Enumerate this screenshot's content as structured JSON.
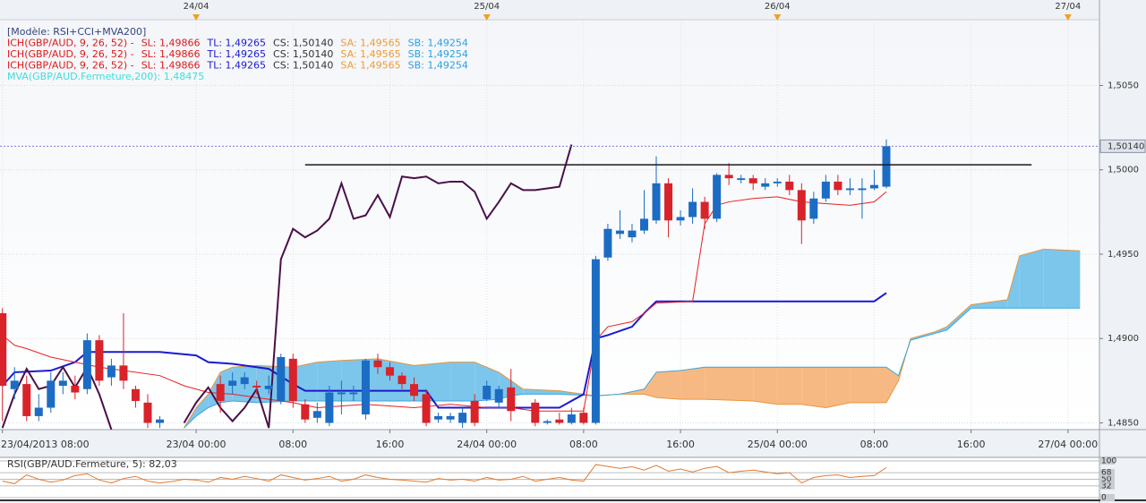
{
  "chart_data": {
    "type": "candlestick",
    "xlim": [
      -16.2,
      74.6
    ],
    "ylim": [
      1.4846,
      1.5089
    ],
    "grid": true,
    "yticks": [
      {
        "value": 1.485,
        "label": "1,4850"
      },
      {
        "value": 1.49,
        "label": "1,4900"
      },
      {
        "value": 1.495,
        "label": "1,4950"
      },
      {
        "value": 1.5,
        "label": "1,5000"
      },
      {
        "value": 1.505,
        "label": "1,5050"
      }
    ],
    "xticks": [
      {
        "value": -16,
        "label": "23/04/2013 08:00"
      },
      {
        "value": 0,
        "label": "23/04 00:00"
      },
      {
        "value": 8,
        "label": "08:00"
      },
      {
        "value": 16,
        "label": "16:00"
      },
      {
        "value": 24,
        "label": "24/04 00:00"
      },
      {
        "value": 32,
        "label": "08:00"
      },
      {
        "value": 40,
        "label": "16:00"
      },
      {
        "value": 48,
        "label": "25/04 00:00"
      },
      {
        "value": 56,
        "label": "08:00"
      },
      {
        "value": 64,
        "label": "16:00"
      },
      {
        "value": 72,
        "label": "27/04 00:00"
      }
    ],
    "top_ticks": [
      {
        "value": 0,
        "label": "24/04"
      },
      {
        "value": 24,
        "label": "25/04"
      },
      {
        "value": 48,
        "label": "26/04"
      },
      {
        "value": 72,
        "label": "27/04"
      }
    ],
    "legend_lines": [
      [
        {
          "text": "[Modèle: RSI+CCI+MVA200]",
          "color": "#34437e"
        }
      ],
      [
        {
          "text": "ICH(GBP/AUD, 9, 26, 52) -",
          "color": "#e01818"
        },
        {
          "text": "SL: 1,49866",
          "color": "#e01818"
        },
        {
          "text": "TL: 1,49265",
          "color": "#1a1ad0"
        },
        {
          "text": "CS: 1,50140",
          "color": "#333333"
        },
        {
          "text": "SA: 1,49565",
          "color": "#f09a30"
        },
        {
          "text": "SB: 1,49254",
          "color": "#2aa0e0"
        }
      ],
      [
        {
          "text": "ICH(GBP/AUD, 9, 26, 52) -",
          "color": "#e01818"
        },
        {
          "text": "SL: 1,49866",
          "color": "#e01818"
        },
        {
          "text": "TL: 1,49265",
          "color": "#1a1ad0"
        },
        {
          "text": "CS: 1,50140",
          "color": "#333333"
        },
        {
          "text": "SA: 1,49565",
          "color": "#f09a30"
        },
        {
          "text": "SB: 1,49254",
          "color": "#2aa0e0"
        }
      ],
      [
        {
          "text": "ICH(GBP/AUD, 9, 26, 52) -",
          "color": "#e01818"
        },
        {
          "text": "SL: 1,49866",
          "color": "#e01818"
        },
        {
          "text": "TL: 1,49265",
          "color": "#1a1ad0"
        },
        {
          "text": "CS: 1,50140",
          "color": "#333333"
        },
        {
          "text": "SA: 1,49565",
          "color": "#f09a30"
        },
        {
          "text": "SB: 1,49254",
          "color": "#2aa0e0"
        }
      ],
      [
        {
          "text": "MVA(GBP/AUD.Fermeture,200): 1,48475",
          "color": "#3fdcdc"
        }
      ]
    ],
    "cloud": {
      "x": [
        -1,
        0,
        1,
        2,
        3,
        5,
        8,
        10,
        12,
        15,
        18,
        21,
        23,
        25,
        26,
        27,
        30,
        33,
        35,
        37,
        38,
        40,
        42,
        46,
        48,
        50,
        52,
        54,
        56,
        57,
        58,
        59,
        61,
        62,
        64,
        67,
        68,
        70,
        73
      ],
      "sa": [
        1.4847,
        1.4859,
        1.4867,
        1.488,
        1.4883,
        1.4884,
        1.4883,
        1.4886,
        1.4887,
        1.4888,
        1.4884,
        1.4886,
        1.4886,
        1.488,
        1.4875,
        1.487,
        1.4869,
        1.4866,
        1.4867,
        1.4867,
        1.4865,
        1.4864,
        1.4864,
        1.4863,
        1.4861,
        1.4861,
        1.4859,
        1.4862,
        1.4862,
        1.4862,
        1.4875,
        1.49,
        1.4904,
        1.4907,
        1.492,
        1.4923,
        1.4949,
        1.4953,
        1.4952
      ],
      "sb": [
        1.4847,
        1.4854,
        1.4859,
        1.4862,
        1.4863,
        1.4862,
        1.4863,
        1.4863,
        1.4863,
        1.4863,
        1.4863,
        1.4863,
        1.4863,
        1.4864,
        1.4866,
        1.4867,
        1.4867,
        1.4866,
        1.4867,
        1.487,
        1.488,
        1.4881,
        1.4883,
        1.4883,
        1.4883,
        1.4883,
        1.4883,
        1.4883,
        1.4883,
        1.4883,
        1.4878,
        1.4899,
        1.4903,
        1.4905,
        1.4918,
        1.4918,
        1.4918,
        1.4918,
        1.4918
      ],
      "sa_color": "#e8953a",
      "sb_color": "#3aa8dc",
      "up_fill": "#7cc6ec",
      "down_fill": "#f7b983"
    },
    "candles": {
      "x": [
        -16,
        -15,
        -14,
        -13,
        -12,
        -11,
        -10,
        -9,
        -8,
        -7,
        -6,
        -5,
        -4,
        -3,
        2,
        3,
        4,
        5,
        6,
        7,
        8,
        9,
        10,
        11,
        12,
        13,
        14,
        15,
        16,
        17,
        18,
        19,
        20,
        21,
        22,
        23,
        24,
        25,
        26,
        28,
        29,
        30,
        31,
        32,
        33,
        34,
        35,
        36,
        37,
        38,
        39,
        40,
        41,
        42,
        43,
        44,
        45,
        46,
        47,
        48,
        49,
        50,
        51,
        52,
        53,
        54,
        55,
        56,
        57
      ],
      "open": [
        1.4915,
        1.487,
        1.4873,
        1.4854,
        1.4859,
        1.4872,
        1.4872,
        1.487,
        1.4899,
        1.4877,
        1.4884,
        1.487,
        1.4862,
        1.485,
        1.4873,
        1.4872,
        1.4873,
        1.4872,
        1.487,
        1.4863,
        1.4888,
        1.4861,
        1.4853,
        1.485,
        1.4867,
        1.4867,
        1.4855,
        1.4887,
        1.4883,
        1.4878,
        1.4873,
        1.4867,
        1.4852,
        1.4852,
        1.485,
        1.4863,
        1.4864,
        1.4862,
        1.4871,
        1.4862,
        1.485,
        1.4852,
        1.485,
        1.4856,
        1.485,
        1.4948,
        1.4962,
        1.496,
        1.4964,
        1.497,
        1.4992,
        1.497,
        1.4972,
        1.4981,
        1.4971,
        1.4997,
        1.4994,
        1.4995,
        1.499,
        1.4992,
        1.4993,
        1.4988,
        1.4971,
        1.4983,
        1.4993,
        1.4988,
        1.4988,
        1.4989,
        1.499
      ],
      "high": [
        1.4918,
        1.4883,
        1.4878,
        1.4867,
        1.488,
        1.488,
        1.4878,
        1.4903,
        1.4902,
        1.4888,
        1.4915,
        1.4872,
        1.4867,
        1.4854,
        1.4878,
        1.488,
        1.488,
        1.4875,
        1.4878,
        1.4891,
        1.4891,
        1.4864,
        1.4862,
        1.4872,
        1.4875,
        1.4872,
        1.4888,
        1.4891,
        1.4886,
        1.488,
        1.4877,
        1.487,
        1.4856,
        1.4856,
        1.4859,
        1.4867,
        1.4875,
        1.4872,
        1.4882,
        1.4864,
        1.4852,
        1.4856,
        1.4859,
        1.4859,
        1.4949,
        1.4968,
        1.4976,
        1.4968,
        1.4988,
        1.5008,
        1.4995,
        1.4976,
        1.4989,
        1.4984,
        1.4998,
        1.5004,
        1.4997,
        1.4997,
        1.4995,
        1.4995,
        1.4997,
        1.4992,
        1.4987,
        1.4997,
        1.4997,
        1.4995,
        1.4995,
        1.5,
        1.5018
      ],
      "low": [
        1.4851,
        1.4864,
        1.4851,
        1.4851,
        1.4856,
        1.4867,
        1.4864,
        1.4867,
        1.4872,
        1.4872,
        1.487,
        1.4859,
        1.4847,
        1.4847,
        1.4856,
        1.4867,
        1.487,
        1.4867,
        1.4867,
        1.4861,
        1.4859,
        1.485,
        1.485,
        1.4848,
        1.4855,
        1.4863,
        1.4852,
        1.4879,
        1.4875,
        1.487,
        1.4863,
        1.4848,
        1.485,
        1.485,
        1.4847,
        1.4848,
        1.4863,
        1.4859,
        1.4851,
        1.4848,
        1.4849,
        1.4849,
        1.4849,
        1.4849,
        1.4849,
        1.4946,
        1.4959,
        1.4957,
        1.4962,
        1.4968,
        1.496,
        1.4967,
        1.4968,
        1.4965,
        1.4969,
        1.4991,
        1.4992,
        1.4988,
        1.4988,
        1.499,
        1.4985,
        1.4956,
        1.4968,
        1.4981,
        1.4985,
        1.4985,
        1.4971,
        1.4988,
        1.4989
      ],
      "close": [
        1.4872,
        1.4875,
        1.4854,
        1.4859,
        1.4875,
        1.4875,
        1.4868,
        1.4899,
        1.4875,
        1.4884,
        1.4875,
        1.4863,
        1.485,
        1.4852,
        1.4863,
        1.4875,
        1.4877,
        1.4871,
        1.4872,
        1.4889,
        1.4863,
        1.4852,
        1.4857,
        1.4868,
        1.4868,
        1.4868,
        1.4887,
        1.4883,
        1.4878,
        1.4873,
        1.4866,
        1.485,
        1.4854,
        1.4854,
        1.4856,
        1.485,
        1.4872,
        1.487,
        1.4857,
        1.485,
        1.4851,
        1.485,
        1.4855,
        1.485,
        1.4947,
        1.4965,
        1.4964,
        1.4964,
        1.4971,
        1.4992,
        1.497,
        1.4972,
        1.4981,
        1.4971,
        1.4997,
        1.4995,
        1.4995,
        1.4992,
        1.4992,
        1.4993,
        1.4988,
        1.497,
        1.4983,
        1.4993,
        1.4988,
        1.4989,
        1.4989,
        1.4991,
        1.5014
      ],
      "up_color": "#1c6cc4",
      "down_color": "#d8232a"
    },
    "lines": [
      {
        "color": "#1a1ad0",
        "width": 2,
        "x": [
          -16,
          -15,
          -12,
          -10,
          -9,
          -3,
          0,
          1,
          3,
          6,
          8,
          9,
          19,
          20,
          30,
          32,
          33,
          34,
          36,
          37,
          38,
          56,
          57
        ],
        "values": [
          1.4872,
          1.488,
          1.4881,
          1.4886,
          1.4892,
          1.4892,
          1.489,
          1.4886,
          1.4885,
          1.4882,
          1.4873,
          1.4869,
          1.4869,
          1.4859,
          1.4859,
          1.4867,
          1.49,
          1.4902,
          1.4907,
          1.4915,
          1.4922,
          1.4922,
          1.4927
        ]
      },
      {
        "color": "#e82020",
        "width": 1,
        "x": [
          -16,
          -15,
          -14,
          -12,
          -10,
          -8,
          -6,
          -3,
          -1,
          1,
          3,
          6,
          8,
          10,
          14,
          18,
          21,
          24,
          26,
          28,
          32,
          33,
          34,
          36,
          37,
          38,
          41,
          42,
          43,
          44,
          46,
          48,
          50,
          52,
          54,
          56,
          57
        ],
        "values": [
          1.4902,
          1.4896,
          1.4894,
          1.4889,
          1.4886,
          1.4883,
          1.4881,
          1.4878,
          1.4872,
          1.4868,
          1.4867,
          1.4864,
          1.4862,
          1.4859,
          1.4861,
          1.4859,
          1.4861,
          1.4859,
          1.4859,
          1.4857,
          1.4857,
          1.4899,
          1.4907,
          1.491,
          1.4915,
          1.4921,
          1.4922,
          1.4968,
          1.4979,
          1.4981,
          1.4983,
          1.4984,
          1.4981,
          1.498,
          1.4979,
          1.4981,
          1.4987
        ]
      },
      {
        "color": "#4a1048",
        "width": 2,
        "x": [
          -16,
          -15,
          -14,
          -13,
          -12,
          -11,
          -10,
          -9,
          -8,
          -7,
          -6,
          -1,
          0,
          1,
          2,
          3,
          4,
          5,
          6,
          7,
          8,
          9,
          10,
          11,
          12,
          13,
          14,
          15,
          16,
          17,
          18,
          19,
          20,
          21,
          22,
          23,
          24,
          25,
          26,
          27,
          28,
          29,
          30,
          31
        ],
        "values": [
          1.4847,
          1.4867,
          1.4882,
          1.487,
          1.4872,
          1.4883,
          1.4871,
          1.4883,
          1.4867,
          1.4846,
          null,
          1.485,
          1.4862,
          1.4871,
          1.4859,
          1.4851,
          1.4859,
          1.487,
          1.4847,
          1.4947,
          1.4965,
          1.496,
          1.4964,
          1.4971,
          1.4992,
          1.4971,
          1.4973,
          1.4985,
          1.4972,
          1.4996,
          1.4995,
          1.4996,
          1.4992,
          1.4993,
          1.4993,
          1.4987,
          1.4971,
          1.4981,
          1.4992,
          1.4988,
          1.4988,
          1.4989,
          1.499,
          1.5015
        ]
      }
    ],
    "level_line": {
      "value": 1.5003,
      "x": [
        9,
        69
      ],
      "color": "#1a1a1a"
    },
    "last_price": {
      "value": 1.5014,
      "label": "1,50140"
    },
    "rsi": {
      "title": "RSI(GBP/AUD.Fermeture, 5): 82,03",
      "ylim": [
        0,
        100
      ],
      "yticks": [
        0,
        32,
        50,
        68,
        100
      ],
      "color": "#e07a30",
      "x": [
        -16,
        -15,
        -14,
        -13,
        -12,
        -11,
        -10,
        -9,
        -8,
        -7,
        -6,
        -5,
        -4,
        -3,
        -2,
        -1,
        0,
        1,
        2,
        3,
        4,
        5,
        6,
        7,
        8,
        9,
        10,
        11,
        12,
        13,
        14,
        15,
        16,
        17,
        18,
        19,
        20,
        21,
        22,
        23,
        24,
        25,
        26,
        27,
        28,
        29,
        30,
        31,
        32,
        33,
        34,
        35,
        36,
        37,
        38,
        39,
        40,
        41,
        42,
        43,
        44,
        45,
        46,
        47,
        48,
        49,
        50,
        51,
        52,
        53,
        54,
        55,
        56,
        57
      ],
      "values": [
        45,
        38,
        62,
        50,
        42,
        48,
        60,
        65,
        48,
        40,
        52,
        58,
        45,
        40,
        44,
        50,
        48,
        42,
        55,
        50,
        58,
        52,
        45,
        62,
        55,
        48,
        52,
        58,
        45,
        50,
        62,
        55,
        50,
        48,
        45,
        42,
        52,
        48,
        50,
        45,
        55,
        48,
        50,
        58,
        45,
        50,
        55,
        48,
        45,
        90,
        85,
        80,
        84,
        75,
        88,
        72,
        78,
        70,
        80,
        85,
        68,
        72,
        75,
        70,
        65,
        68,
        40,
        55,
        60,
        62,
        55,
        58,
        60,
        82.03
      ]
    }
  }
}
